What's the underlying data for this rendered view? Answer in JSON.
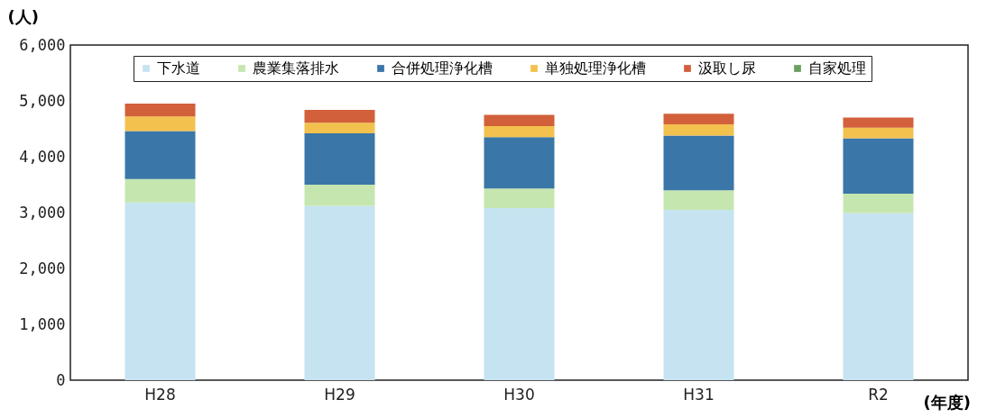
{
  "chart_data": {
    "type": "bar",
    "stacked": true,
    "ylabel": "(人)",
    "xlabel": "(年度)",
    "categories": [
      "H28",
      "H29",
      "H30",
      "H31",
      "R2"
    ],
    "series": [
      {
        "name": "下水道",
        "color": "#c5e3f0",
        "values": [
          3180,
          3120,
          3080,
          3050,
          2990
        ]
      },
      {
        "name": "農業集落排水",
        "color": "#c6e6b0",
        "values": [
          420,
          380,
          350,
          350,
          350
        ]
      },
      {
        "name": "合併処理浄化槽",
        "color": "#3a76a8",
        "values": [
          860,
          920,
          920,
          980,
          990
        ]
      },
      {
        "name": "単独処理浄化槽",
        "color": "#f2c14e",
        "values": [
          260,
          190,
          200,
          200,
          190
        ]
      },
      {
        "name": "汲取し尿",
        "color": "#d2603a",
        "values": [
          230,
          230,
          200,
          190,
          180
        ]
      },
      {
        "name": "自家処理",
        "color": "#6aa060",
        "values": [
          0,
          0,
          0,
          0,
          0
        ]
      }
    ],
    "ylim": [
      0,
      6000
    ],
    "yticks": [
      0,
      {
        "value": 1000,
        "label": "1,000"
      },
      {
        "value": 2000,
        "label": "2,000"
      },
      {
        "value": 3000,
        "label": "3,000"
      },
      {
        "value": 4000,
        "label": "4,000"
      },
      {
        "value": 5000,
        "label": "5,000"
      },
      {
        "value": 6000,
        "label": "6,000"
      }
    ],
    "grid": false,
    "legend": "top"
  }
}
